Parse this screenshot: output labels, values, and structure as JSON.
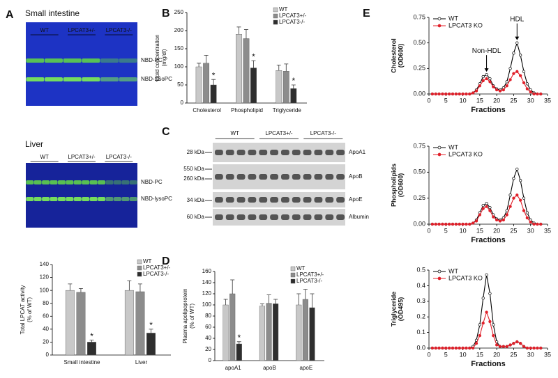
{
  "panel_labels": [
    "A",
    "B",
    "C",
    "D",
    "E"
  ],
  "gels": [
    {
      "title": "Small intestine",
      "lanes": [
        "WT",
        "LPCAT3+/-",
        "LPCAT3-/-"
      ],
      "bands": [
        "NBD-PC",
        "NBD-lysoPC"
      ]
    },
    {
      "title": "Liver",
      "lanes": [
        "WT",
        "LPCAT3+/-",
        "LPCAT3-/-"
      ],
      "bands": [
        "NBD-PC",
        "NBD-lysoPC"
      ]
    }
  ],
  "blot": {
    "groups": [
      "WT",
      "LPCAT3+/-",
      "LPCAT3-/-"
    ],
    "markers": [
      "28 kDa",
      "550 kDa",
      "260 kDa",
      "34 kDa",
      "60 kDa"
    ],
    "proteins": [
      "ApoA1",
      "ApoB",
      "ApoE",
      "Albumin"
    ]
  },
  "chart_data": [
    {
      "type": "bar",
      "ylabel": [
        "Total LPCAT activity",
        "(% of WT)"
      ],
      "categories": [
        "Small intestine",
        "Liver"
      ],
      "series": [
        {
          "name": "WT",
          "color": "#c8c8c8",
          "values": [
            100,
            100
          ],
          "errors": [
            10,
            15
          ]
        },
        {
          "name": "LPCAT3+/-",
          "color": "#8c8c8c",
          "values": [
            97,
            98
          ],
          "errors": [
            6,
            12
          ]
        },
        {
          "name": "LPCAT3-/-",
          "color": "#2e2e2e",
          "values": [
            20,
            34
          ],
          "errors": [
            3,
            6
          ]
        }
      ],
      "annotations": [
        {
          "text": "*",
          "series": 2,
          "category": 0
        },
        {
          "text": "*",
          "series": 2,
          "category": 1
        }
      ],
      "ylim": [
        0,
        140
      ],
      "yticks": [
        0,
        20,
        40,
        60,
        80,
        100,
        120,
        140
      ],
      "legend": "upper right"
    },
    {
      "type": "bar",
      "ylabel": [
        "Lipid concentration",
        "(mg/dl)"
      ],
      "categories": [
        "Cholesterol",
        "Phospholipid",
        "Triglyceride"
      ],
      "series": [
        {
          "name": "WT",
          "color": "#c8c8c8",
          "values": [
            100,
            190,
            90
          ],
          "errors": [
            10,
            20,
            15
          ]
        },
        {
          "name": "LPCAT3+/-",
          "color": "#8c8c8c",
          "values": [
            110,
            178,
            88
          ],
          "errors": [
            22,
            25,
            20
          ]
        },
        {
          "name": "LPCAT3-/-",
          "color": "#2e2e2e",
          "values": [
            50,
            97,
            40
          ],
          "errors": [
            15,
            20,
            10
          ]
        }
      ],
      "annotations": [
        {
          "text": "*",
          "series": 2,
          "category": 0
        },
        {
          "text": "*",
          "series": 2,
          "category": 1
        },
        {
          "text": "*",
          "series": 2,
          "category": 2
        }
      ],
      "ylim": [
        0,
        250
      ],
      "yticks": [
        0,
        50,
        100,
        150,
        200,
        250
      ],
      "legend": "upper right"
    },
    {
      "type": "bar",
      "ylabel": [
        "Plasma apolipoprotein",
        "(% of WT)"
      ],
      "categories": [
        "apoA1",
        "apoB",
        "apoE"
      ],
      "series": [
        {
          "name": "WT",
          "color": "#c8c8c8",
          "values": [
            100,
            98,
            100
          ],
          "errors": [
            10,
            4,
            20
          ]
        },
        {
          "name": "LPCAT3+/-",
          "color": "#8c8c8c",
          "values": [
            120,
            103,
            110
          ],
          "errors": [
            25,
            15,
            18
          ]
        },
        {
          "name": "LPCAT3-/-",
          "color": "#2e2e2e",
          "values": [
            30,
            102,
            95
          ],
          "errors": [
            4,
            8,
            25
          ]
        }
      ],
      "annotations": [
        {
          "text": "*",
          "series": 2,
          "category": 0
        }
      ],
      "ylim": [
        0,
        160
      ],
      "yticks": [
        0,
        20,
        40,
        60,
        80,
        100,
        120,
        140,
        160
      ],
      "legend": "upper right"
    },
    {
      "type": "line",
      "ylabel": [
        "Cholesterol",
        "(OD600)"
      ],
      "xlabel": "Fractions",
      "x": [
        1,
        2,
        3,
        4,
        5,
        6,
        7,
        8,
        9,
        10,
        11,
        12,
        13,
        14,
        15,
        16,
        17,
        18,
        19,
        20,
        21,
        22,
        23,
        24,
        25,
        26,
        27,
        28,
        29,
        30,
        31,
        32,
        33
      ],
      "series": [
        {
          "name": "WT",
          "color": "#000000",
          "values": [
            0,
            0,
            0,
            0,
            0,
            0,
            0,
            0,
            0,
            0,
            0,
            0,
            0.01,
            0.04,
            0.1,
            0.17,
            0.19,
            0.15,
            0.08,
            0.05,
            0.04,
            0.06,
            0.12,
            0.25,
            0.4,
            0.5,
            0.38,
            0.22,
            0.1,
            0.04,
            0.01,
            0,
            0
          ]
        },
        {
          "name": "LPCAT3 KO",
          "color": "#e0202a",
          "values": [
            0,
            0,
            0,
            0,
            0,
            0,
            0,
            0,
            0,
            0,
            0,
            0,
            0.01,
            0.03,
            0.08,
            0.13,
            0.15,
            0.12,
            0.07,
            0.04,
            0.03,
            0.04,
            0.08,
            0.14,
            0.2,
            0.22,
            0.18,
            0.11,
            0.05,
            0.02,
            0,
            0,
            0
          ]
        }
      ],
      "annotations": [
        {
          "text": "Non-HDL",
          "x": 17
        },
        {
          "text": "HDL",
          "x": 26
        }
      ],
      "xlim": [
        0,
        35
      ],
      "xticks": [
        0,
        5,
        10,
        15,
        20,
        25,
        30,
        35
      ],
      "ylim": [
        0,
        0.75
      ],
      "yticks": [
        {
          "value": 0,
          "label": "0.00"
        },
        {
          "value": 0.25,
          "label": "0.25"
        },
        {
          "value": 0.5,
          "label": "0.50"
        },
        {
          "value": 0.75,
          "label": "0.75"
        }
      ],
      "legend": "upper left"
    },
    {
      "type": "line",
      "ylabel": [
        "Phospholipids",
        "(OD600)"
      ],
      "xlabel": "Fractions",
      "x": [
        1,
        2,
        3,
        4,
        5,
        6,
        7,
        8,
        9,
        10,
        11,
        12,
        13,
        14,
        15,
        16,
        17,
        18,
        19,
        20,
        21,
        22,
        23,
        24,
        25,
        26,
        27,
        28,
        29,
        30,
        31,
        32,
        33
      ],
      "series": [
        {
          "name": "WT",
          "color": "#000000",
          "values": [
            0,
            0,
            0,
            0,
            0,
            0,
            0,
            0,
            0,
            0,
            0,
            0,
            0.01,
            0.04,
            0.11,
            0.18,
            0.2,
            0.16,
            0.09,
            0.05,
            0.04,
            0.06,
            0.13,
            0.28,
            0.44,
            0.53,
            0.42,
            0.25,
            0.11,
            0.04,
            0.01,
            0,
            0
          ]
        },
        {
          "name": "LPCAT3 KO",
          "color": "#e0202a",
          "values": [
            0,
            0,
            0,
            0,
            0,
            0,
            0,
            0,
            0,
            0,
            0,
            0,
            0.01,
            0.03,
            0.09,
            0.15,
            0.17,
            0.13,
            0.07,
            0.04,
            0.03,
            0.04,
            0.09,
            0.17,
            0.25,
            0.28,
            0.23,
            0.13,
            0.06,
            0.02,
            0,
            0,
            0
          ]
        }
      ],
      "xlim": [
        0,
        35
      ],
      "xticks": [
        0,
        5,
        10,
        15,
        20,
        25,
        30,
        35
      ],
      "ylim": [
        0,
        0.75
      ],
      "yticks": [
        {
          "value": 0,
          "label": "0.00"
        },
        {
          "value": 0.25,
          "label": "0.25"
        },
        {
          "value": 0.5,
          "label": "0.50"
        },
        {
          "value": 0.75,
          "label": "0.75"
        }
      ],
      "legend": "upper left"
    },
    {
      "type": "line",
      "ylabel": [
        "Triglyceride",
        "(OD495)"
      ],
      "xlabel": "Fractions",
      "x": [
        1,
        2,
        3,
        4,
        5,
        6,
        7,
        8,
        9,
        10,
        11,
        12,
        13,
        14,
        15,
        16,
        17,
        18,
        19,
        20,
        21,
        22,
        23,
        24,
        25,
        26,
        27,
        28,
        29,
        30,
        31,
        32,
        33
      ],
      "series": [
        {
          "name": "WT",
          "color": "#000000",
          "values": [
            0,
            0,
            0,
            0,
            0,
            0,
            0,
            0,
            0,
            0,
            0,
            0,
            0.01,
            0.05,
            0.15,
            0.32,
            0.47,
            0.35,
            0.15,
            0.04,
            0.01,
            0.01,
            0.01,
            0.02,
            0.03,
            0.04,
            0.03,
            0.01,
            0,
            0,
            0,
            0,
            0
          ]
        },
        {
          "name": "LPCAT3 KO",
          "color": "#e0202a",
          "values": [
            0,
            0,
            0,
            0,
            0,
            0,
            0,
            0,
            0,
            0,
            0,
            0,
            0,
            0.03,
            0.08,
            0.16,
            0.23,
            0.17,
            0.08,
            0.02,
            0.01,
            0.01,
            0.01,
            0.02,
            0.03,
            0.04,
            0.03,
            0.01,
            0,
            0,
            0,
            0,
            0
          ]
        }
      ],
      "xlim": [
        0,
        35
      ],
      "xticks": [
        0,
        5,
        10,
        15,
        20,
        25,
        30,
        35
      ],
      "ylim": [
        0,
        0.5
      ],
      "yticks": [
        {
          "value": 0,
          "label": "0.0"
        },
        0.1,
        0.2,
        0.3,
        0.4,
        0.5
      ],
      "legend": "upper left"
    }
  ]
}
